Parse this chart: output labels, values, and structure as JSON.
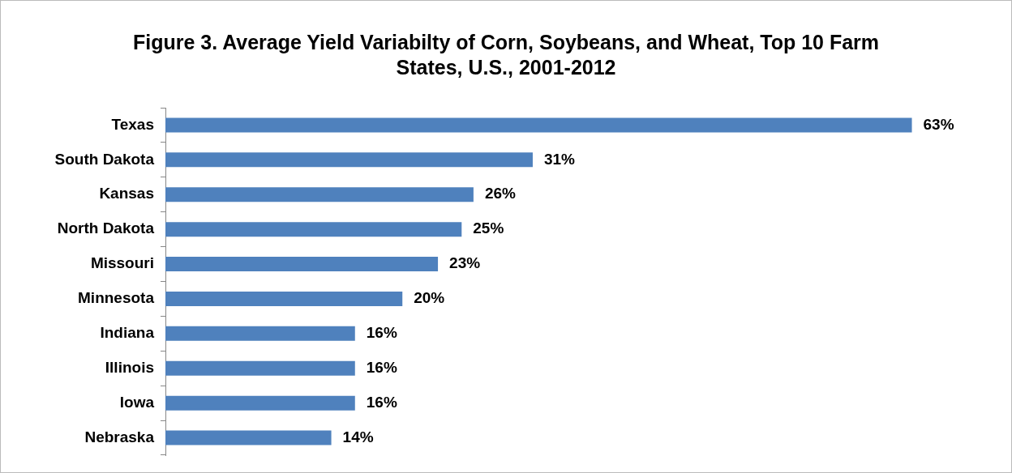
{
  "chart_data": {
    "type": "bar",
    "orientation": "horizontal",
    "title": "Figure 3.  Average Yield Variabilty of Corn, Soybeans, and Wheat, Top 10 Farm States, U.S., 2001-2012",
    "categories": [
      "Texas",
      "South Dakota",
      "Kansas",
      "North Dakota",
      "Missouri",
      "Minnesota",
      "Indiana",
      "Illinois",
      "Iowa",
      "Nebraska"
    ],
    "values": [
      63,
      31,
      26,
      25,
      23,
      20,
      16,
      16,
      16,
      14
    ],
    "value_labels": [
      "63%",
      "31%",
      "26%",
      "25%",
      "23%",
      "20%",
      "16%",
      "16%",
      "16%",
      "14%"
    ],
    "color": "#4f81bd",
    "legend": false,
    "grid": false
  }
}
